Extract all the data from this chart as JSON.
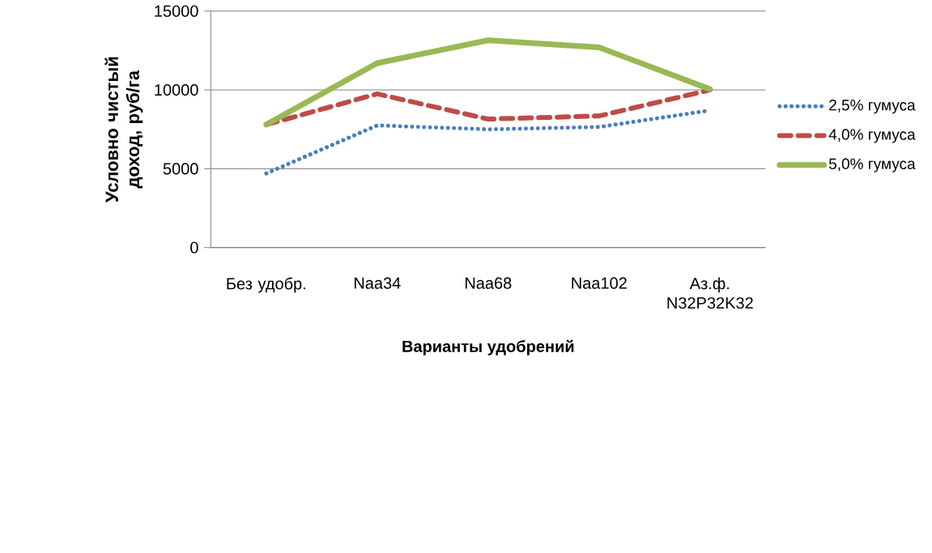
{
  "chart_data": {
    "type": "line",
    "xlabel": "Варианты удобрений",
    "ylabel": "Условно чистый доход, руб/га",
    "categories": [
      "Без удобр.",
      "Naa34",
      "Naa68",
      "Naa102",
      "Аз.ф. N32P32K32"
    ],
    "series": [
      {
        "name": "2,5% гумуса",
        "color": "#4a7ebb",
        "line_style": "dotted",
        "values": [
          4700,
          7750,
          7500,
          7650,
          8700
        ]
      },
      {
        "name": "4,0% гумуса",
        "color": "#be4b48",
        "line_style": "dashed",
        "values": [
          7800,
          9750,
          8150,
          8350,
          10000
        ]
      },
      {
        "name": "5,0% гумуса",
        "color": "#98b954",
        "line_style": "solid",
        "values": [
          7800,
          11700,
          13150,
          12700,
          10050
        ]
      }
    ],
    "ylim": [
      0,
      15000
    ],
    "yticks": [
      0,
      5000,
      10000,
      15000
    ],
    "grid": "y",
    "legend": "right"
  }
}
